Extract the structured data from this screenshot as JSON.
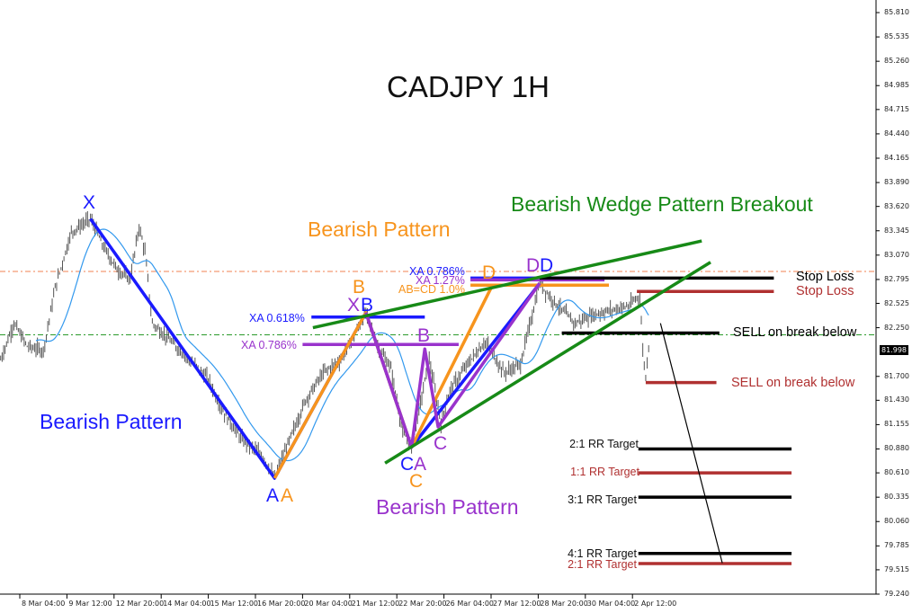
{
  "chart_data": {
    "type": "line",
    "title": "CADJPY 1H",
    "colors": {
      "blue": "#1a1aff",
      "orange": "#f7941d",
      "purple": "#9933cc",
      "green": "#178a17",
      "red": "#b03030",
      "black": "#000000",
      "ma": "#3399ee",
      "bars": "#555555"
    },
    "ylim": [
      79.24,
      85.81
    ],
    "y_ticks": [
      "85.810",
      "85.535",
      "85.260",
      "84.985",
      "84.715",
      "84.440",
      "84.165",
      "83.890",
      "83.620",
      "83.345",
      "83.070",
      "82.795",
      "82.525",
      "82.250",
      "81.700",
      "81.430",
      "81.155",
      "80.880",
      "80.610",
      "80.335",
      "80.060",
      "79.785",
      "79.515",
      "79.240"
    ],
    "current_price": "81.998",
    "x_ticks": [
      "8 Mar 04:00",
      "9 Mar 12:00",
      "12 Mar 20:00",
      "14 Mar 04:00",
      "15 Mar 12:00",
      "16 Mar 20:00",
      "20 Mar 04:00",
      "21 Mar 12:00",
      "22 Mar 20:00",
      "26 Mar 04:00",
      "27 Mar 12:00",
      "28 Mar 20:00",
      "30 Mar 04:00",
      "2 Apr 12:00"
    ],
    "price_path": [
      [
        "7 Mar 15:00",
        81.89
      ],
      [
        "8 Mar 00:00",
        82.3
      ],
      [
        "8 Mar 09:00",
        82.04
      ],
      [
        "8 Mar 20:00",
        81.99
      ],
      [
        "9 Mar 04:00",
        82.7
      ],
      [
        "9 Mar 15:00",
        83.33
      ],
      [
        "12 Mar 04:00",
        83.48
      ],
      [
        "12 Mar 13:00",
        83.16
      ],
      [
        "12 Mar 22:00",
        82.91
      ],
      [
        "13 Mar 07:00",
        82.8
      ],
      [
        "13 Mar 13:00",
        83.39
      ],
      [
        "13 Mar 17:00",
        83.11
      ],
      [
        "13 Mar 22:00",
        82.3
      ],
      [
        "14 Mar 08:00",
        82.14
      ],
      [
        "14 Mar 20:00",
        81.94
      ],
      [
        "15 Mar 11:00",
        81.69
      ],
      [
        "15 Mar 23:00",
        81.28
      ],
      [
        "16 Mar 11:00",
        80.98
      ],
      [
        "19 Mar 00:00",
        80.82
      ],
      [
        "19 Mar 09:00",
        80.55
      ],
      [
        "19 Mar 18:00",
        80.93
      ],
      [
        "20 Mar 06:00",
        81.43
      ],
      [
        "20 Mar 18:00",
        81.74
      ],
      [
        "21 Mar 06:00",
        81.89
      ],
      [
        "21 Mar 16:00",
        82.19
      ],
      [
        "21 Mar 23:00",
        82.42
      ],
      [
        "22 Mar 07:00",
        82.04
      ],
      [
        "22 Mar 16:00",
        81.79
      ],
      [
        "23 Mar 00:00",
        81.08
      ],
      [
        "23 Mar 06:00",
        80.9
      ],
      [
        "23 Mar 13:00",
        81.48
      ],
      [
        "23 Mar 18:00",
        81.89
      ],
      [
        "26 Mar 02:00",
        81.18
      ],
      [
        "26 Mar 08:00",
        81.54
      ],
      [
        "26 Mar 20:00",
        81.84
      ],
      [
        "27 Mar 08:00",
        82.09
      ],
      [
        "27 Mar 21:00",
        81.74
      ],
      [
        "28 Mar 08:00",
        81.84
      ],
      [
        "28 Mar 16:00",
        82.4
      ],
      [
        "28 Mar 21:00",
        82.75
      ],
      [
        "29 Mar 04:00",
        82.6
      ],
      [
        "29 Mar 12:00",
        82.45
      ],
      [
        "29 Mar 21:00",
        82.3
      ],
      [
        "30 Mar 10:00",
        82.4
      ],
      [
        "30 Mar 22:00",
        82.45
      ],
      [
        "2 Apr 10:00",
        82.5
      ],
      [
        "2 Apr 17:00",
        82.62
      ],
      [
        "2 Apr 19:00",
        81.99
      ],
      [
        "2 Apr 21:00",
        81.69
      ],
      [
        "2 Apr 23:00",
        82.04
      ]
    ],
    "h_lines": [
      {
        "name": "orange-dashed-level",
        "price": 82.885,
        "color": "#f08050",
        "style": "dashdot"
      },
      {
        "name": "green-dashed-level",
        "price": 82.17,
        "color": "#2a9a2a",
        "style": "dashdot"
      }
    ],
    "patterns": [
      {
        "name": "blue-pattern",
        "color": "blue",
        "points": [
          [
            "12 Mar 04:00",
            83.48
          ],
          [
            "19 Mar 09:00",
            80.55
          ],
          [
            "21 Mar 23:00",
            82.42
          ],
          [
            "23 Mar 06:00",
            80.9
          ],
          [
            "28 Mar 21:00",
            82.75
          ]
        ]
      },
      {
        "name": "orange-pattern",
        "color": "orange",
        "points": [
          [
            "19 Mar 09:00",
            80.55
          ],
          [
            "21 Mar 23:00",
            82.42
          ],
          [
            "23 Mar 06:00",
            80.9
          ],
          [
            "27 Mar 12:00",
            82.7
          ]
        ]
      },
      {
        "name": "purple-pattern",
        "color": "purple",
        "points": [
          [
            "21 Mar 23:00",
            82.42
          ],
          [
            "23 Mar 06:00",
            80.9
          ],
          [
            "23 Mar 15:00",
            82.01
          ],
          [
            "26 Mar 00:00",
            81.13
          ],
          [
            "28 Mar 21:00",
            82.75
          ]
        ]
      },
      {
        "name": "wedge-upper",
        "color": "green",
        "points": [
          [
            "20 Mar 11:00",
            82.25
          ],
          [
            "4 Apr 11:00",
            83.23
          ]
        ]
      },
      {
        "name": "wedge-lower",
        "color": "green",
        "points": [
          [
            "22 Mar 12:00",
            80.72
          ],
          [
            "4 Apr 17:00",
            82.99
          ]
        ]
      }
    ],
    "segments": [
      {
        "name": "fib-xa-0618",
        "color": "blue",
        "from": "20 Mar 10:00",
        "to": "23 Mar 15:00",
        "price": 82.37
      },
      {
        "name": "fib-xa-0786-purple",
        "color": "purple",
        "from": "20 Mar 04:00",
        "to": "26 Mar 14:00",
        "price": 82.06
      },
      {
        "name": "fib-xa-0786-blue",
        "color": "blue",
        "from": "26 Mar 22:00",
        "to": "30 Mar 17:00",
        "price": 82.81
      },
      {
        "name": "fib-xa-127",
        "color": "purple",
        "from": "26 Mar 22:00",
        "to": "30 Mar 17:00",
        "price": 82.79
      },
      {
        "name": "fib-abcd-10",
        "color": "orange",
        "from": "26 Mar 22:00",
        "to": "30 Mar 20:00",
        "price": 82.73
      },
      {
        "name": "stop-loss-black",
        "color": "black",
        "from": "28 Mar 21:00",
        "to": "6 Apr 12:00",
        "price": 82.81
      },
      {
        "name": "stop-loss-red",
        "color": "red",
        "from": "2 Apr 15:00",
        "to": "6 Apr 12:00",
        "price": 82.66
      },
      {
        "name": "sell-black",
        "color": "black",
        "from": "29 Mar 12:00",
        "to": "4 Apr 23:00",
        "price": 82.19
      },
      {
        "name": "sell-red",
        "color": "red",
        "from": "2 Apr 21:00",
        "to": "4 Apr 21:00",
        "price": 81.63
      },
      {
        "name": "target-2-1-black",
        "color": "black",
        "from": "2 Apr 16:00",
        "to": "9 Apr 00:00",
        "price": 80.88
      },
      {
        "name": "target-1-1-red",
        "color": "red",
        "from": "2 Apr 16:00",
        "to": "9 Apr 00:00",
        "price": 80.61
      },
      {
        "name": "target-3-1-black",
        "color": "black",
        "from": "2 Apr 16:00",
        "to": "9 Apr 00:00",
        "price": 80.335
      },
      {
        "name": "target-4-1-black",
        "color": "black",
        "from": "2 Apr 16:00",
        "to": "9 Apr 00:00",
        "price": 79.7
      },
      {
        "name": "target-2-1-red",
        "color": "red",
        "from": "2 Apr 16:00",
        "to": "9 Apr 00:00",
        "price": 79.585
      }
    ],
    "projection": {
      "from": [
        "3 Apr 07:00",
        82.3
      ],
      "to": [
        "5 Apr 01:00",
        79.59
      ]
    }
  },
  "labels": {
    "title": "CADJPY 1H",
    "wedge": "Bearish Wedge Pattern Breakout",
    "orange_pattern": "Bearish Pattern",
    "blue_pattern": "Bearish Pattern",
    "purple_pattern": "Bearish Pattern",
    "points": {
      "blue_x": "X",
      "blue_a": "A",
      "orange_a": "A",
      "orange_b": "B",
      "purple_x": "X",
      "blue_b": "B",
      "purple_b": "B",
      "purple_c": "C",
      "blue_c": "C",
      "purple_a": "A",
      "orange_c": "C",
      "orange_d": "D",
      "purple_d": "D",
      "blue_d": "D"
    },
    "fib": {
      "xa0618": "XA 0.618%",
      "xa0786_purple": "XA 0.786%",
      "xa0786_blue": "XA 0.786%",
      "xa127": "XA 1.27%",
      "abcd": "AB=CD 1.0%"
    },
    "trade": {
      "stop_black": "Stop Loss",
      "stop_red": "Stop Loss",
      "sell_black": "SELL on break below",
      "sell_red": "SELL on break below"
    },
    "targets": {
      "t21_black": "2:1 RR Target",
      "t11_red": "1:1 RR Target",
      "t31_black": "3:1 RR Target",
      "t41_black": "4:1 RR Target",
      "t21_red": "2:1 RR Target"
    }
  }
}
